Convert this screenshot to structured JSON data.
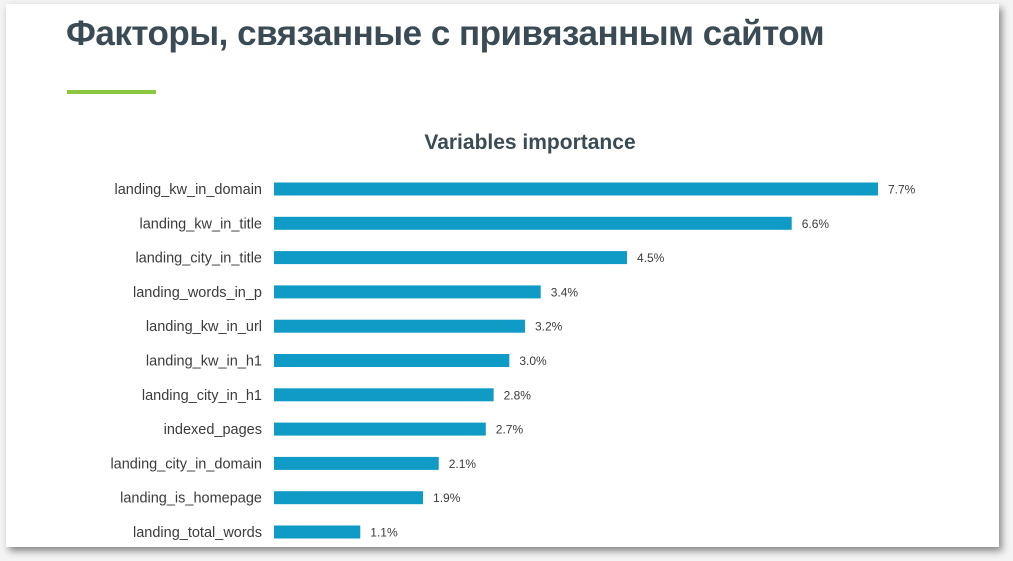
{
  "slide": {
    "title": "Факторы, связанные с привязанным сайтом",
    "accent_color": "#8dc63f"
  },
  "chart_data": {
    "type": "bar",
    "orientation": "horizontal",
    "title": "Variables importance",
    "categories": [
      "landing_kw_in_domain",
      "landing_kw_in_title",
      "landing_city_in_title",
      "landing_words_in_p",
      "landing_kw_in_url",
      "landing_kw_in_h1",
      "landing_city_in_h1",
      "indexed_pages",
      "landing_city_in_domain",
      "landing_is_homepage",
      "landing_total_words"
    ],
    "values": [
      7.7,
      6.6,
      4.5,
      3.4,
      3.2,
      3.0,
      2.8,
      2.7,
      2.1,
      1.9,
      1.1
    ],
    "value_labels": [
      "7.7%",
      "6.6%",
      "4.5%",
      "3.4%",
      "3.2%",
      "3.0%",
      "2.8%",
      "2.7%",
      "2.1%",
      "1.9%",
      "1.1%"
    ],
    "unit": "%",
    "xlim": [
      0,
      7.7
    ],
    "bar_color": "#0f9bc6",
    "grid": false,
    "legend": "none"
  }
}
